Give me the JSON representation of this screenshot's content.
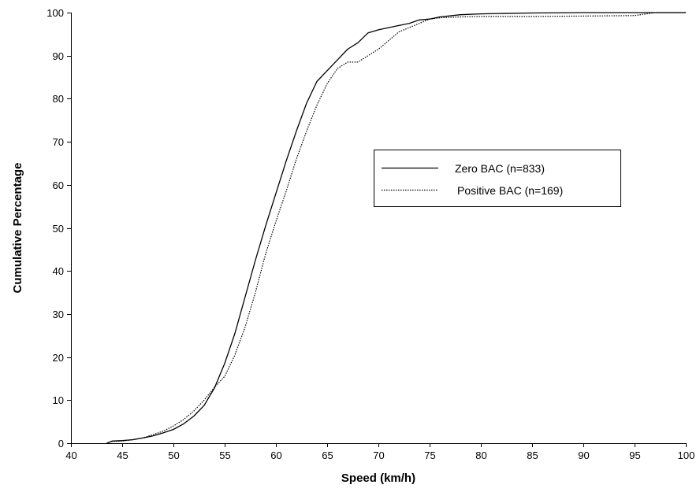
{
  "chart_data": {
    "type": "line",
    "xlabel": "Speed (km/h)",
    "ylabel": "Cumulative Percentage",
    "xlim": [
      40,
      100
    ],
    "ylim": [
      0,
      100
    ],
    "xticks": [
      40,
      45,
      50,
      55,
      60,
      65,
      70,
      75,
      80,
      85,
      90,
      95,
      100
    ],
    "yticks": [
      0,
      10,
      20,
      30,
      40,
      50,
      60,
      70,
      80,
      90,
      100
    ],
    "grid": false,
    "legend_position": "center-right",
    "series": [
      {
        "name": "Zero BAC (n=833)",
        "style": "solid",
        "color": "#000000",
        "x": [
          43.5,
          44,
          45,
          46,
          47,
          48,
          49,
          50,
          51,
          52,
          53,
          54,
          55,
          56,
          57,
          58,
          59,
          60,
          61,
          62,
          63,
          64,
          65,
          66,
          67,
          68,
          69,
          70,
          71,
          72,
          73,
          74,
          75,
          76,
          78,
          80,
          85,
          90,
          95,
          100
        ],
        "y": [
          0,
          0.5,
          0.6,
          0.8,
          1.2,
          1.7,
          2.4,
          3.2,
          4.5,
          6.3,
          8.8,
          12.8,
          18.5,
          25.5,
          34,
          42.5,
          50.5,
          58,
          65.5,
          72.5,
          79,
          84,
          86.5,
          89,
          91.5,
          93,
          95.3,
          96,
          96.5,
          97,
          97.5,
          98.3,
          98.5,
          99,
          99.5,
          99.7,
          99.9,
          100,
          100,
          100
        ]
      },
      {
        "name": "Positive BAC (n=169)",
        "style": "dotted",
        "color": "#000000",
        "x": [
          43.5,
          44,
          45,
          46,
          47,
          48,
          49,
          50,
          51,
          52,
          53,
          54,
          55,
          56,
          57,
          58,
          59,
          60,
          61,
          62,
          63,
          64,
          65,
          66,
          67,
          68,
          69,
          70,
          71,
          72,
          73,
          74,
          75,
          76,
          78,
          80,
          85,
          90,
          95,
          97,
          100
        ],
        "y": [
          0,
          0.4,
          0.5,
          0.8,
          1.2,
          2,
          2.8,
          4,
          5.5,
          7.5,
          10,
          13,
          15.5,
          20.5,
          27,
          35,
          44,
          51.5,
          58.5,
          66,
          72.5,
          78.5,
          83.5,
          87,
          88.5,
          88.5,
          90,
          91.5,
          93.5,
          95.5,
          96.5,
          97.5,
          98.5,
          98.8,
          99,
          99.1,
          99.1,
          99.2,
          99.3,
          100,
          100
        ]
      }
    ]
  }
}
